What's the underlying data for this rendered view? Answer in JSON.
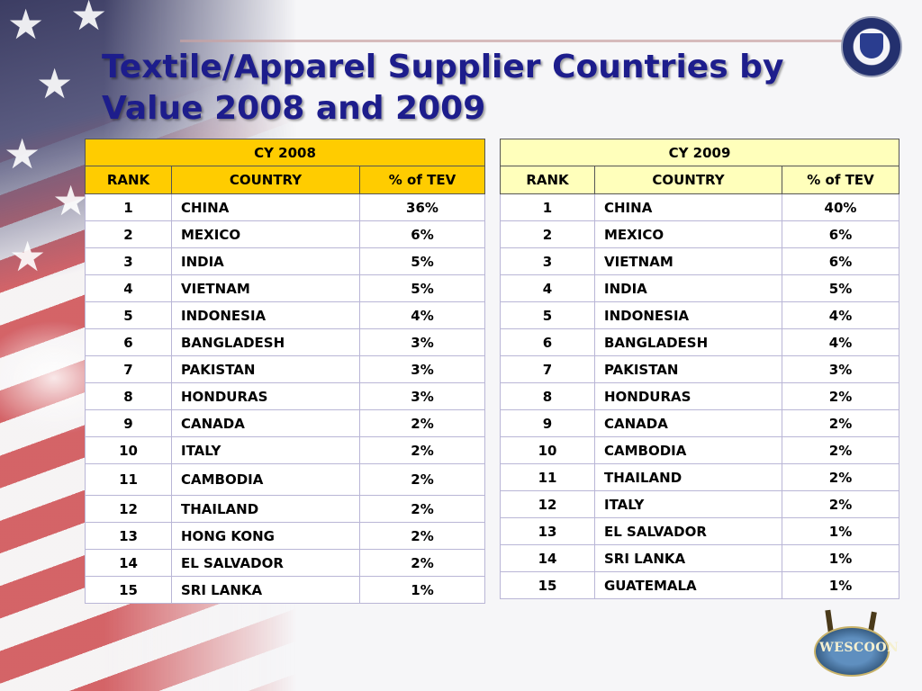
{
  "title": "Textile/Apparel Supplier Countries by Value 2008 and 2009",
  "seal_icon": "dhs-seal-icon",
  "tables": [
    {
      "year_label": "CY 2008",
      "headers": [
        "RANK",
        "COUNTRY",
        "% of TEV"
      ],
      "rows": [
        [
          "1",
          "CHINA",
          "36%"
        ],
        [
          "2",
          "MEXICO",
          "6%"
        ],
        [
          "3",
          "INDIA",
          "5%"
        ],
        [
          "4",
          "VIETNAM",
          "5%"
        ],
        [
          "5",
          "INDONESIA",
          "4%"
        ],
        [
          "6",
          "BANGLADESH",
          "3%"
        ],
        [
          "7",
          "PAKISTAN",
          "3%"
        ],
        [
          "8",
          "HONDURAS",
          "3%"
        ],
        [
          "9",
          "CANADA",
          "2%"
        ],
        [
          "10",
          "ITALY",
          "2%"
        ],
        [
          "11",
          "CAMBODIA",
          "2%"
        ],
        [
          "12",
          "THAILAND",
          "2%"
        ],
        [
          "13",
          "HONG KONG",
          "2%"
        ],
        [
          "14",
          "EL SALVADOR",
          "2%"
        ],
        [
          "15",
          "SRI LANKA",
          "1%"
        ]
      ]
    },
    {
      "year_label": "CY 2009",
      "headers": [
        "RANK",
        "COUNTRY",
        "% of TEV"
      ],
      "rows": [
        [
          "1",
          "CHINA",
          "40%"
        ],
        [
          "2",
          "MEXICO",
          "6%"
        ],
        [
          "3",
          "VIETNAM",
          "6%"
        ],
        [
          "4",
          "INDIA",
          "5%"
        ],
        [
          "5",
          "INDONESIA",
          "4%"
        ],
        [
          "6",
          "BANGLADESH",
          "4%"
        ],
        [
          "7",
          "PAKISTAN",
          "3%"
        ],
        [
          "8",
          "HONDURAS",
          "2%"
        ],
        [
          "9",
          "CANADA",
          "2%"
        ],
        [
          "10",
          "CAMBODIA",
          "2%"
        ],
        [
          "11",
          "THAILAND",
          "2%"
        ],
        [
          "12",
          "ITALY",
          "2%"
        ],
        [
          "13",
          "EL SALVADOR",
          "1%"
        ],
        [
          "14",
          "SRI LANKA",
          "1%"
        ],
        [
          "15",
          "GUATEMALA",
          "1%"
        ]
      ]
    }
  ],
  "logo": {
    "icon": "wescoon-logo-icon",
    "text": "WESCOON"
  }
}
